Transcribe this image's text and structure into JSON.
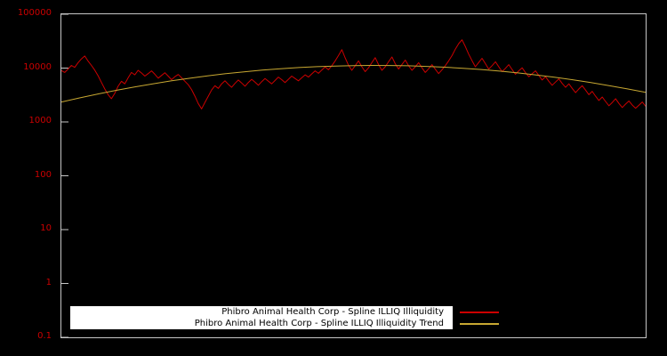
{
  "chart_data": {
    "type": "line",
    "title": "",
    "plot_bg": "#000000",
    "border_color": "#c6c6c6",
    "x_axis": {
      "tick_labels": []
    },
    "y_axis": {
      "scale": "log",
      "ylim": [
        0.1,
        100000
      ],
      "tick_values": [
        100000,
        10000,
        1000,
        100,
        10,
        1,
        0.1
      ],
      "tick_labels": [
        "100000",
        "10000",
        "1000",
        "100",
        "10",
        "1",
        "0.1"
      ],
      "tick_color": "#cc0000"
    },
    "legend": {
      "position": "bottom-center",
      "background": "#ffffff",
      "text_color": "#000000"
    },
    "series": [
      {
        "name": "Phibro Animal Health Corp - Spline ILLIQ Illiquidity",
        "color": "#cc0000",
        "stroke_width": 1,
        "values": [
          9000,
          8300,
          9600,
          11200,
          10300,
          12600,
          14800,
          16800,
          13500,
          11200,
          9200,
          7200,
          5400,
          4100,
          3200,
          2700,
          3400,
          4600,
          5700,
          5100,
          6600,
          8300,
          7500,
          9100,
          8100,
          7100,
          7900,
          8900,
          7700,
          6500,
          7300,
          8200,
          7100,
          6100,
          6900,
          7600,
          6600,
          5700,
          4900,
          4000,
          3000,
          2200,
          1750,
          2300,
          3000,
          3900,
          4700,
          4200,
          5100,
          5800,
          5000,
          4400,
          5200,
          6000,
          5300,
          4600,
          5400,
          6200,
          5500,
          4800,
          5600,
          6400,
          5700,
          5100,
          5900,
          6800,
          6100,
          5400,
          6200,
          7100,
          6400,
          5800,
          6600,
          7500,
          6800,
          7800,
          8900,
          8000,
          9200,
          10500,
          9300,
          11100,
          13600,
          17100,
          22000,
          15500,
          11300,
          9100,
          11100,
          13600,
          10600,
          8600,
          10100,
          12600,
          15600,
          11600,
          9100,
          10600,
          13100,
          16100,
          12100,
          9600,
          11600,
          14100,
          11100,
          9100,
          10600,
          12600,
          10100,
          8300,
          9700,
          11600,
          9500,
          7900,
          9300,
          11100,
          13600,
          17100,
          22500,
          28500,
          33500,
          25000,
          18200,
          13700,
          10600,
          12700,
          15200,
          12100,
          9600,
          11100,
          13100,
          10600,
          8600,
          9900,
          11600,
          9400,
          7700,
          8900,
          10100,
          8300,
          6900,
          7900,
          8900,
          7300,
          6000,
          6900,
          5700,
          4800,
          5500,
          6300,
          5200,
          4400,
          5100,
          4200,
          3500,
          4100,
          4700,
          3900,
          3200,
          3700,
          3000,
          2500,
          2900,
          2400,
          2000,
          2300,
          2700,
          2200,
          1850,
          2150,
          2450,
          2050,
          1800,
          2050,
          2350,
          1950
        ]
      },
      {
        "name": "Phibro Animal Health Corp - Spline ILLIQ Illiquidity Trend",
        "color": "#c8a832",
        "stroke_width": 1,
        "values": [
          2344,
          2796,
          3302,
          3858,
          4459,
          5098,
          5772,
          6465,
          7163,
          7854,
          8520,
          9148,
          9718,
          10214,
          10624,
          10932,
          11132,
          11218,
          11184,
          11033,
          10770,
          10402,
          9942,
          9403,
          8798,
          8146,
          7462,
          6765,
          6069,
          5387,
          4729,
          4111,
          3536
        ]
      }
    ]
  }
}
